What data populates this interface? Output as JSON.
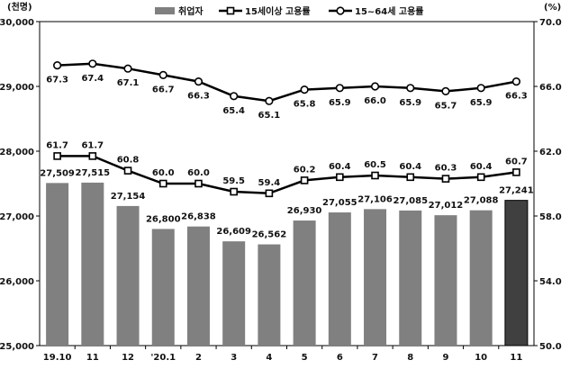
{
  "chart_data": {
    "type": "bar",
    "left_unit": "(천명)",
    "right_unit": "(%)",
    "categories": [
      "19.10",
      "11",
      "12",
      "'20.1",
      "2",
      "3",
      "4",
      "5",
      "6",
      "7",
      "8",
      "9",
      "10",
      "11"
    ],
    "y_left": {
      "range": [
        25000,
        30000
      ],
      "ticks": [
        "25,000",
        "26,000",
        "27,000",
        "28,000",
        "29,000",
        "30,000"
      ],
      "tick_values": [
        25000,
        26000,
        27000,
        28000,
        29000,
        30000
      ]
    },
    "y_right": {
      "range": [
        50.0,
        70.0
      ],
      "ticks": [
        "50.0",
        "54.0",
        "58.0",
        "62.0",
        "66.0",
        "70.0"
      ],
      "tick_values": [
        50,
        54,
        58,
        62,
        66,
        70
      ]
    },
    "series": [
      {
        "name": "취업자",
        "kind": "bar",
        "axis": "left",
        "values": [
          27509,
          27515,
          27154,
          26800,
          26838,
          26609,
          26562,
          26930,
          27055,
          27106,
          27085,
          27012,
          27088,
          27241
        ],
        "labels": [
          "27,509",
          "27,515",
          "27,154",
          "26,800",
          "26,838",
          "26,609",
          "26,562",
          "26,930",
          "27,055",
          "27,106",
          "27,085",
          "27,012",
          "27,088",
          "27,241"
        ]
      },
      {
        "name": "15세이상 고용률",
        "kind": "line",
        "marker": "square",
        "axis": "right",
        "values": [
          61.7,
          61.7,
          60.8,
          60.0,
          60.0,
          59.5,
          59.4,
          60.2,
          60.4,
          60.5,
          60.4,
          60.3,
          60.4,
          60.7
        ],
        "labels": [
          "61.7",
          "61.7",
          "60.8",
          "60.0",
          "60.0",
          "59.5",
          "59.4",
          "60.2",
          "60.4",
          "60.5",
          "60.4",
          "60.3",
          "60.4",
          "60.7"
        ]
      },
      {
        "name": "15~64세 고용률",
        "kind": "line",
        "marker": "circle",
        "axis": "right",
        "values": [
          67.3,
          67.4,
          67.1,
          66.7,
          66.3,
          65.4,
          65.1,
          65.8,
          65.9,
          66.0,
          65.9,
          65.7,
          65.9,
          66.3
        ],
        "labels": [
          "67.3",
          "67.4",
          "67.1",
          "66.7",
          "66.3",
          "65.4",
          "65.1",
          "65.8",
          "65.9",
          "66.0",
          "65.9",
          "65.7",
          "65.9",
          "66.3"
        ]
      }
    ],
    "colors": {
      "bar": "#808080",
      "bar_highlight": "#404040",
      "line": "#000000",
      "marker_fill": "#ffffff"
    },
    "highlight_index": 13,
    "grid": false,
    "legend_position": "top"
  }
}
